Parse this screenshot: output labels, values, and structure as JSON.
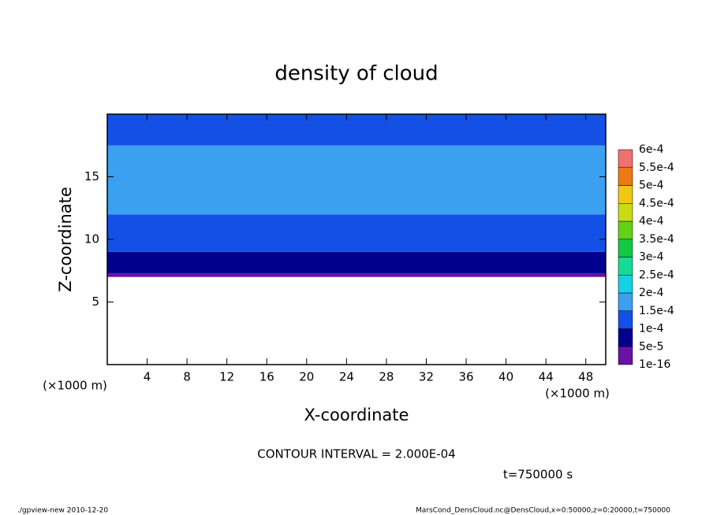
{
  "chart_data": {
    "type": "contour",
    "title": "density of cloud",
    "x_label": "X-coordinate",
    "y_label": "Z-coordinate",
    "x_unit": "(×1000 m)",
    "x_unit_right": "(×1000 m)",
    "xlim": [
      0,
      50
    ],
    "xticks": [
      4,
      8,
      12,
      16,
      20,
      24,
      28,
      32,
      36,
      40,
      44,
      48
    ],
    "ylim": [
      0,
      20
    ],
    "yticks": [
      5,
      10,
      15
    ],
    "field": {
      "z": [
        7,
        7.3,
        9,
        12,
        17.5,
        20
      ],
      "values": [
        3e-05,
        7e-05,
        0.00012,
        0.00016,
        0.00013
      ]
    },
    "colorbar": {
      "levels": [
        {
          "value": 1e-16,
          "label": "1e-16"
        },
        {
          "value": 5e-05,
          "label": "5e-5"
        },
        {
          "value": 0.0001,
          "label": "1e-4"
        },
        {
          "value": 0.00015,
          "label": "1.5e-4"
        },
        {
          "value": 0.0002,
          "label": "2e-4"
        },
        {
          "value": 0.00025,
          "label": "2.5e-4"
        },
        {
          "value": 0.0003,
          "label": "3e-4"
        },
        {
          "value": 0.00035,
          "label": "3.5e-4"
        },
        {
          "value": 0.0004,
          "label": "4e-4"
        },
        {
          "value": 0.00045,
          "label": "4.5e-4"
        },
        {
          "value": 0.0005,
          "label": "5e-4"
        },
        {
          "value": 0.00055,
          "label": "5.5e-4"
        },
        {
          "value": 0.0006,
          "label": "6e-4"
        }
      ],
      "colors": [
        "#6a12a8",
        "#00008c",
        "#1450e6",
        "#3ca0f0",
        "#14d2e6",
        "#14dc96",
        "#14c846",
        "#64d214",
        "#c8dc14",
        "#f0c814",
        "#f07814",
        "#f07070"
      ]
    },
    "contour_interval": "CONTOUR INTERVAL = 2.000E-04",
    "time": "t=750000 s",
    "footer_left": "./gpview-new  2010-12-20",
    "footer_right": "MarsCond_DensCloud.nc@DensCloud,x=0:50000,z=0:20000,t=750000"
  }
}
